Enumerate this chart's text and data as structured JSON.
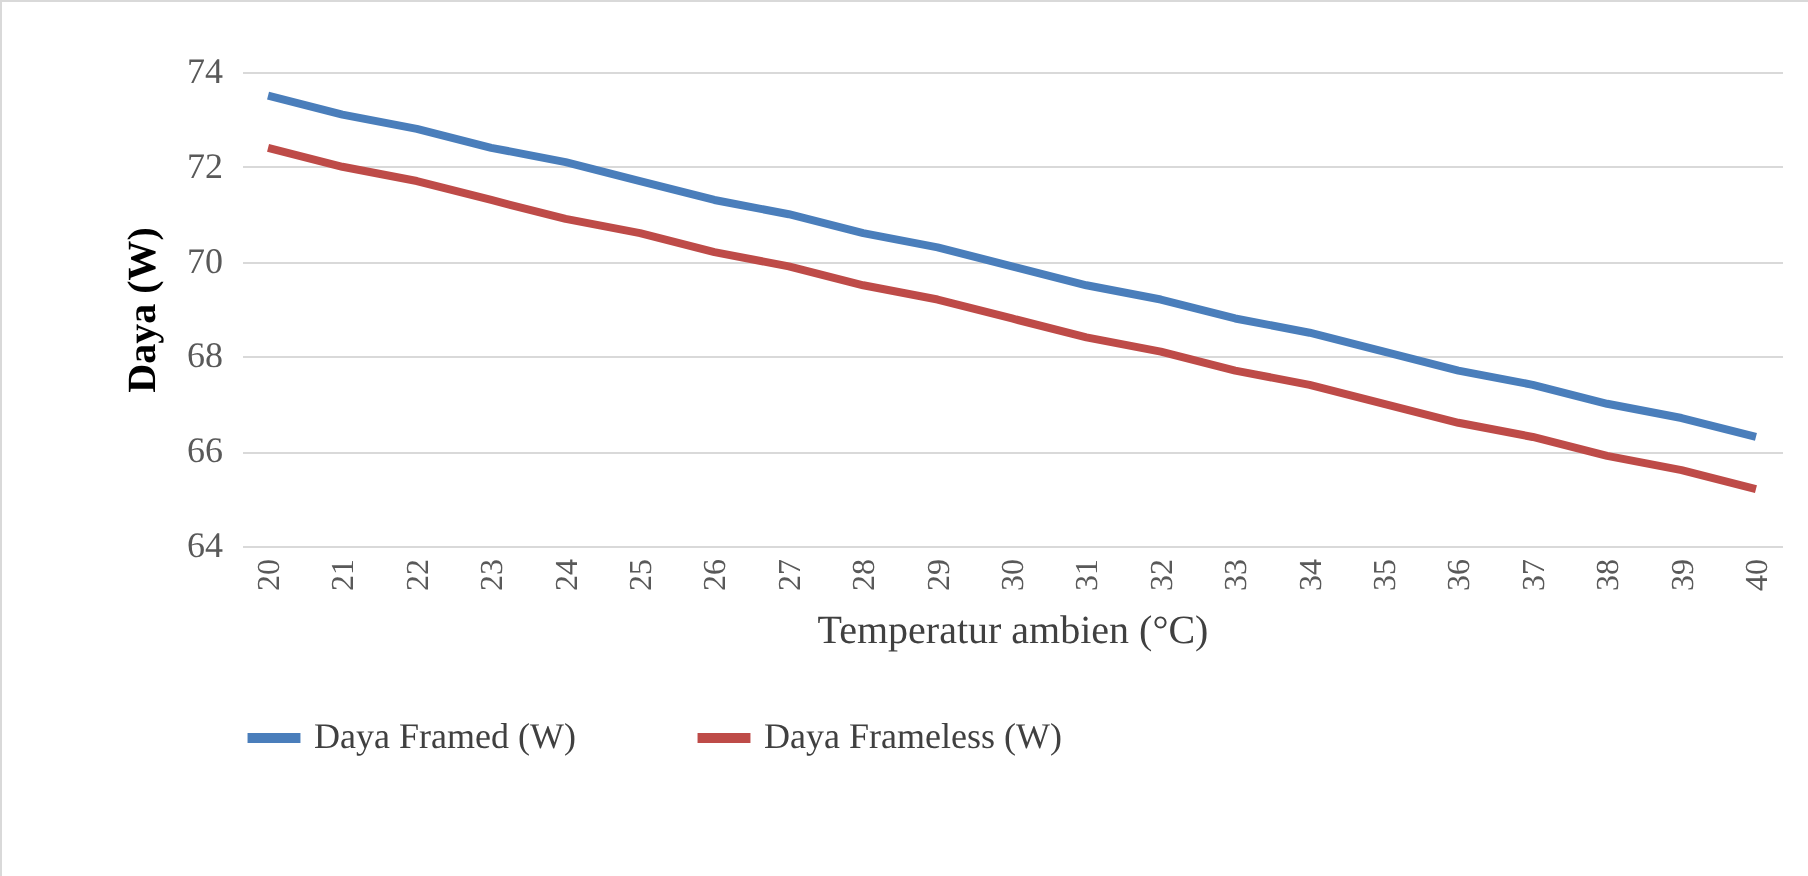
{
  "chart_data": {
    "type": "line",
    "xlabel": "Temperatur ambien (°C)",
    "ylabel": "Daya (W)",
    "categories": [
      "20",
      "21",
      "22",
      "23",
      "24",
      "25",
      "26",
      "27",
      "28",
      "29",
      "30",
      "31",
      "32",
      "33",
      "34",
      "35",
      "36",
      "37",
      "38",
      "39",
      "40"
    ],
    "series": [
      {
        "name": "Daya Framed (W)",
        "color": "#4a7ebb",
        "values": [
          73.5,
          73.1,
          72.8,
          72.4,
          72.1,
          71.7,
          71.3,
          71.0,
          70.6,
          70.3,
          69.9,
          69.5,
          69.2,
          68.8,
          68.5,
          68.1,
          67.7,
          67.4,
          67.0,
          66.7,
          66.3
        ]
      },
      {
        "name": "Daya Frameless (W)",
        "color": "#be4b48",
        "values": [
          72.4,
          72.0,
          71.7,
          71.3,
          70.9,
          70.6,
          70.2,
          69.9,
          69.5,
          69.2,
          68.8,
          68.4,
          68.1,
          67.7,
          67.4,
          67.0,
          66.6,
          66.3,
          65.9,
          65.6,
          65.2
        ]
      }
    ],
    "ylim": [
      64,
      74
    ],
    "yticks": [
      64,
      66,
      68,
      70,
      72,
      74
    ],
    "grid": "y",
    "legend": "bottom",
    "marker": "none",
    "line_style": "solid"
  }
}
